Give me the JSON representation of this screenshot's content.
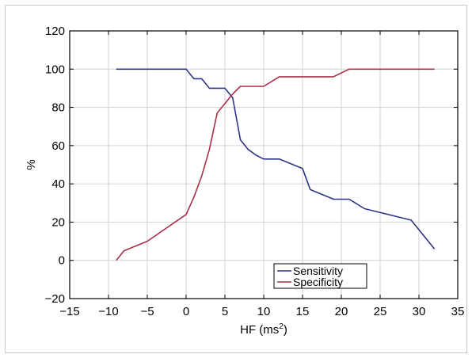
{
  "chart_data": {
    "type": "line",
    "xlabel": "HF (ms²)",
    "ylabel": "%",
    "xlim": [
      -15,
      35
    ],
    "ylim": [
      -20,
      120
    ],
    "xticks": [
      -15,
      -10,
      -5,
      0,
      5,
      10,
      15,
      20,
      25,
      30,
      35
    ],
    "yticks": [
      -20,
      0,
      20,
      40,
      60,
      80,
      100,
      120
    ],
    "grid": true,
    "legend_position": "bottom-center",
    "series": [
      {
        "name": "Sensitivity",
        "color": "#2e3585",
        "points": [
          [
            -9,
            100
          ],
          [
            0,
            100
          ],
          [
            1,
            95
          ],
          [
            2,
            95
          ],
          [
            3,
            90
          ],
          [
            4,
            90
          ],
          [
            5,
            90
          ],
          [
            6,
            85
          ],
          [
            7,
            63
          ],
          [
            8,
            58
          ],
          [
            9,
            55
          ],
          [
            10,
            53
          ],
          [
            12,
            53
          ],
          [
            15,
            48
          ],
          [
            16,
            37
          ],
          [
            19,
            32
          ],
          [
            21,
            32
          ],
          [
            23,
            27
          ],
          [
            29,
            21
          ],
          [
            32,
            6
          ]
        ]
      },
      {
        "name": "Specificity",
        "color": "#a8304a",
        "points": [
          [
            -9,
            0
          ],
          [
            -8,
            5
          ],
          [
            -5,
            10
          ],
          [
            0,
            24
          ],
          [
            1,
            33
          ],
          [
            2,
            44
          ],
          [
            3,
            58
          ],
          [
            4,
            77
          ],
          [
            5,
            82
          ],
          [
            6,
            87
          ],
          [
            7,
            91
          ],
          [
            10,
            91
          ],
          [
            12,
            96
          ],
          [
            15,
            96
          ],
          [
            19,
            96
          ],
          [
            21,
            100
          ],
          [
            32,
            100
          ]
        ]
      }
    ]
  }
}
